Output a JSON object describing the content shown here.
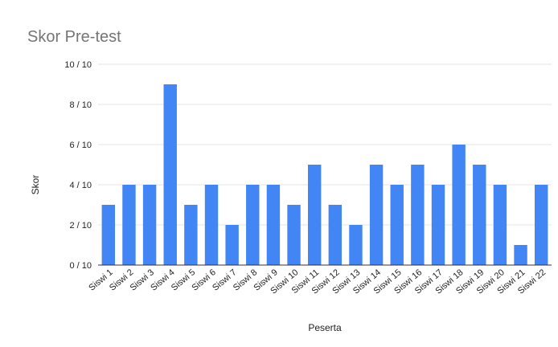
{
  "chart_data": {
    "type": "bar",
    "title": "Skor Pre-test",
    "xlabel": "Peserta",
    "ylabel": "Skor",
    "categories": [
      "Siswi 1",
      "Siswi 2",
      "Siswi 3",
      "Siswi 4",
      "Siswi 5",
      "Siswi 6",
      "Siswi 7",
      "Siswi 8",
      "Siswi 9",
      "Siswi 10",
      "Siswi 11",
      "Siswi 12",
      "Siswi 13",
      "Siswi 14",
      "Siswi 15",
      "Siswi 16",
      "Siswi 17",
      "Siswi 18",
      "Siswi 19",
      "Siswi 20",
      "Siswi 21",
      "Siswi 22"
    ],
    "values": [
      3,
      4,
      4,
      9,
      3,
      4,
      2,
      4,
      4,
      3,
      5,
      3,
      2,
      5,
      4,
      5,
      4,
      6,
      5,
      4,
      1,
      4
    ],
    "ylim": [
      0,
      10
    ],
    "yticks": [
      0,
      2,
      4,
      6,
      8,
      10
    ],
    "ytick_labels": [
      "0 / 10",
      "2 / 10",
      "4 / 10",
      "6 / 10",
      "8 / 10",
      "10 / 10"
    ],
    "grid": true,
    "legend": "none",
    "bar_color": "#4285f4"
  }
}
